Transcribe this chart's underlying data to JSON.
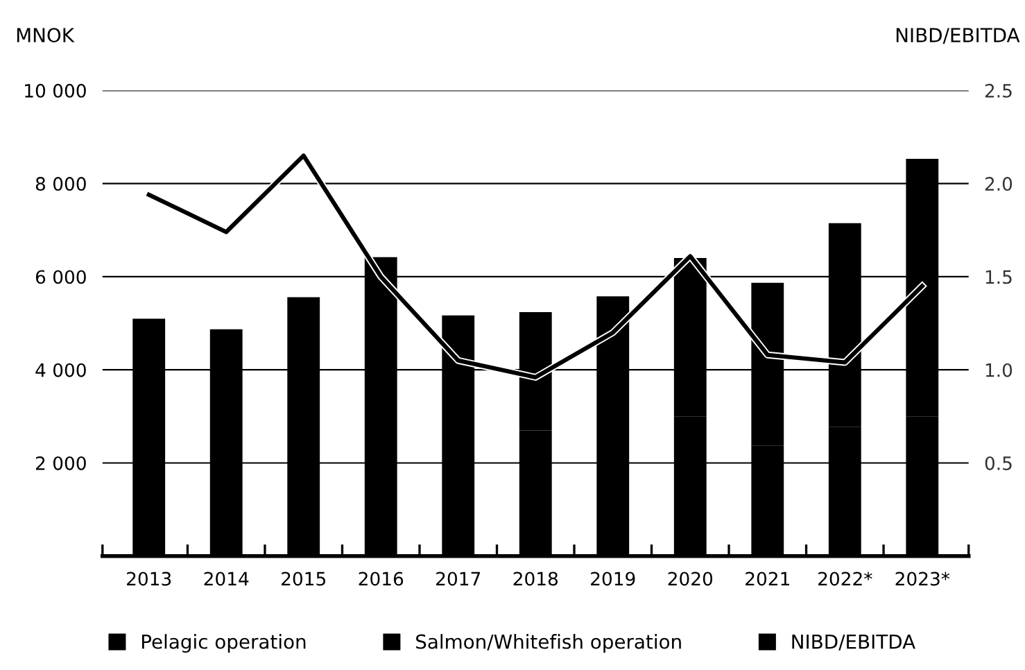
{
  "chart_data": {
    "type": "bar",
    "stacked": true,
    "ylabel": "MNOK",
    "y2label": "NIBD/EBITDA",
    "categories": [
      "2013",
      "2014",
      "2015",
      "2016",
      "2017",
      "2018",
      "2019",
      "2020",
      "2021",
      "2022*",
      "2023*"
    ],
    "series": [
      {
        "name": "Pelagic operation",
        "color": "#000000",
        "values": [
          2960,
          2960,
          2960,
          2960,
          2900,
          2700,
          2930,
          3000,
          2370,
          2780,
          3000
        ]
      },
      {
        "name": "Salmon/Whitefish operation",
        "color": "#000000",
        "values": [
          2140,
          1910,
          2600,
          3460,
          2270,
          2540,
          2650,
          3400,
          3500,
          4370,
          5530
        ]
      },
      {
        "name": "NIBD/EBITDA",
        "type": "line",
        "axis": "y2",
        "color": "#000000",
        "values": [
          1.94,
          1.74,
          2.15,
          1.5,
          1.05,
          0.96,
          1.2,
          1.61,
          1.08,
          1.04,
          1.45
        ]
      }
    ],
    "ylim": [
      0,
      10000
    ],
    "yticks": [
      {
        "value": 2000,
        "label": "2 000"
      },
      {
        "value": 4000,
        "label": "4 000"
      },
      {
        "value": 6000,
        "label": "6 000"
      },
      {
        "value": 8000,
        "label": "8 000"
      },
      {
        "value": 10000,
        "label": "10 000"
      }
    ],
    "y2lim": [
      0,
      2.5
    ],
    "y2ticks": [
      {
        "value": 0.5,
        "label": "0.5"
      },
      {
        "value": 1.0,
        "label": "1.0"
      },
      {
        "value": 1.5,
        "label": "1.5"
      },
      {
        "value": 2.0,
        "label": "2.0"
      },
      {
        "value": 2.5,
        "label": "2.5"
      }
    ],
    "grid": "y",
    "legend": "bottom",
    "marker": "none",
    "line_style": "solid"
  }
}
